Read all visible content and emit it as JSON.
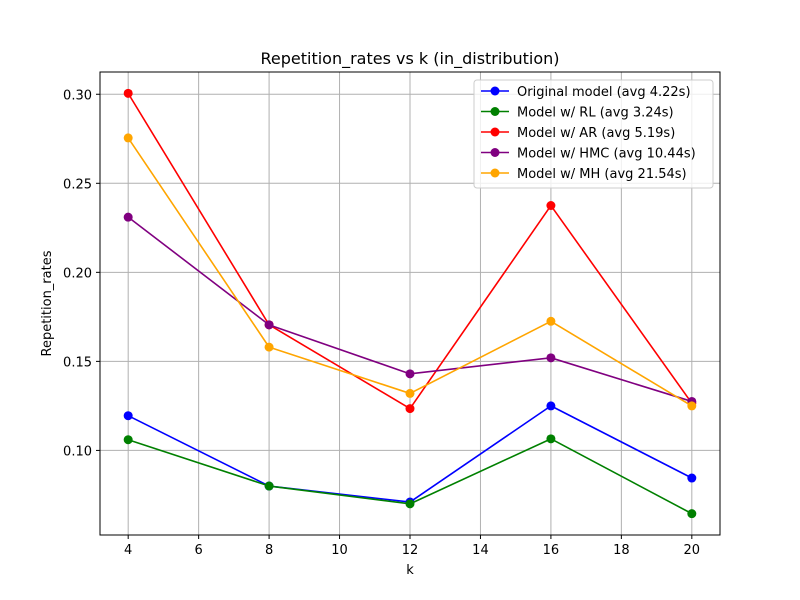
{
  "chart_data": {
    "type": "line",
    "title": "Repetition_rates vs k (in_distribution)",
    "xlabel": "k",
    "ylabel": "Repetition_rates",
    "x": [
      4,
      8,
      12,
      16,
      20
    ],
    "xlim": [
      3.2,
      20.8
    ],
    "ylim": [
      0.0525,
      0.3125
    ],
    "xticks": [
      4,
      6,
      8,
      10,
      12,
      14,
      16,
      18,
      20
    ],
    "yticks": [
      0.1,
      0.15,
      0.2,
      0.25,
      0.3
    ],
    "ytick_labels": [
      "0.10",
      "0.15",
      "0.20",
      "0.25",
      "0.30"
    ],
    "grid": true,
    "legend_position": "top-right",
    "series": [
      {
        "name": "Original model (avg 4.22s)",
        "color": "#0000ff",
        "values": [
          0.1195,
          0.08,
          0.071,
          0.125,
          0.0845
        ]
      },
      {
        "name": "Model w/ RL (avg 3.24s)",
        "color": "#008000",
        "values": [
          0.106,
          0.08,
          0.07,
          0.1065,
          0.0645
        ]
      },
      {
        "name": "Model w/ AR (avg 5.19s)",
        "color": "#ff0000",
        "values": [
          0.3005,
          0.1705,
          0.1235,
          0.2375,
          0.1265
        ]
      },
      {
        "name": "Model w/ HMC (avg 10.44s)",
        "color": "#800080",
        "values": [
          0.231,
          0.1705,
          0.143,
          0.152,
          0.1275
        ]
      },
      {
        "name": "Model w/ MH (avg 21.54s)",
        "color": "#ffa500",
        "values": [
          0.2755,
          0.158,
          0.132,
          0.1725,
          0.125
        ]
      }
    ]
  }
}
